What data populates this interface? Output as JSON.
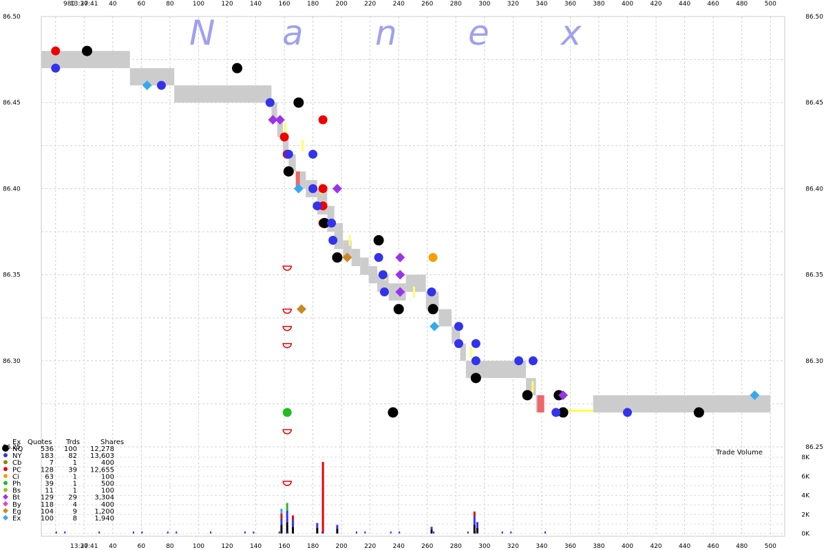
{
  "header": {
    "time_top": "13:37:41",
    "time_bottom": "13:37:41",
    "offset_label": "980"
  },
  "watermark": [
    "N",
    "a",
    "n",
    "e",
    "x"
  ],
  "price_labels": [
    "86.50",
    "86.45",
    "86.40",
    "86.35",
    "86.30",
    "86.25"
  ],
  "x_tick_labels": [
    "20",
    "40",
    "60",
    "80",
    "100",
    "120",
    "140",
    "160",
    "180",
    "200",
    "220",
    "240",
    "260",
    "280",
    "300",
    "320",
    "340",
    "360",
    "380",
    "400",
    "420",
    "440",
    "460",
    "480",
    "500"
  ],
  "volume": {
    "label": "Trade Volume",
    "tick_labels": [
      "8K",
      "6K",
      "4K",
      "2K",
      "0K"
    ]
  },
  "legend": {
    "headers": [
      "Ex",
      "Quotes",
      "Trds",
      "Shares"
    ],
    "rows": [
      {
        "ex": "NQ",
        "quotes": "536",
        "trds": "100",
        "shares": "12,278",
        "color": "#000000",
        "shape": "circle-big"
      },
      {
        "ex": "NY",
        "quotes": "183",
        "trds": "82",
        "shares": "13,603",
        "color": "#3333ee",
        "shape": "circle"
      },
      {
        "ex": "Cb",
        "quotes": "7",
        "trds": "1",
        "shares": "400",
        "color": "#888800",
        "shape": "circle"
      },
      {
        "ex": "PC",
        "quotes": "128",
        "trds": "39",
        "shares": "12,655",
        "color": "#ee0000",
        "shape": "circle"
      },
      {
        "ex": "Ci",
        "quotes": "63",
        "trds": "1",
        "shares": "100",
        "color": "#f5a000",
        "shape": "circle"
      },
      {
        "ex": "Ph",
        "quotes": "39",
        "trds": "1",
        "shares": "500",
        "color": "#22bb22",
        "shape": "circle"
      },
      {
        "ex": "Bs",
        "quotes": "11",
        "trds": "1",
        "shares": "100",
        "color": "#88cc22",
        "shape": "circle"
      },
      {
        "ex": "Bt",
        "quotes": "129",
        "trds": "29",
        "shares": "3,304",
        "color": "#9933ee",
        "shape": "diamond"
      },
      {
        "ex": "By",
        "quotes": "118",
        "trds": "4",
        "shares": "400",
        "color": "#dd44dd",
        "shape": "diamond"
      },
      {
        "ex": "Eg",
        "quotes": "104",
        "trds": "9",
        "shares": "1,200",
        "color": "#cc8822",
        "shape": "diamond"
      },
      {
        "ex": "Ex",
        "quotes": "100",
        "trds": "8",
        "shares": "1,940",
        "color": "#33aaee",
        "shape": "diamond"
      }
    ]
  },
  "chart_data": {
    "type": "scatter",
    "x_range": [
      -10,
      510
    ],
    "ylim": [
      86.25,
      86.5
    ],
    "volume_ylim": [
      0,
      8000
    ],
    "grid": true,
    "nbbo_boxes": [
      [
        -10,
        52,
        86.47,
        86.48
      ],
      [
        52,
        83,
        86.46,
        86.47
      ],
      [
        83,
        151,
        86.45,
        86.46
      ],
      [
        151,
        155,
        86.44,
        86.45
      ],
      [
        155,
        159,
        86.43,
        86.44
      ],
      [
        159,
        163,
        86.42,
        86.43
      ],
      [
        163,
        168,
        86.41,
        86.42
      ],
      [
        168,
        175,
        86.4,
        86.41
      ],
      [
        175,
        183,
        86.395,
        86.405
      ],
      [
        183,
        190,
        86.385,
        86.4
      ],
      [
        190,
        195,
        86.375,
        86.39
      ],
      [
        195,
        201,
        86.365,
        86.38
      ],
      [
        201,
        207,
        86.36,
        86.37
      ],
      [
        207,
        213,
        86.355,
        86.365
      ],
      [
        213,
        219,
        86.35,
        86.36
      ],
      [
        219,
        225,
        86.345,
        86.355
      ],
      [
        225,
        233,
        86.34,
        86.35
      ],
      [
        233,
        245,
        86.335,
        86.345
      ],
      [
        245,
        259,
        86.34,
        86.35
      ],
      [
        259,
        268,
        86.33,
        86.34
      ],
      [
        268,
        277,
        86.32,
        86.33
      ],
      [
        277,
        283,
        86.31,
        86.32
      ],
      [
        283,
        287,
        86.3,
        86.31
      ],
      [
        287,
        295,
        86.29,
        86.3
      ],
      [
        295,
        329,
        86.29,
        86.3
      ],
      [
        329,
        336,
        86.28,
        86.29
      ],
      [
        336,
        340,
        86.27,
        86.28
      ],
      [
        376,
        500,
        86.27,
        86.28
      ]
    ],
    "quote_marks": [
      {
        "series": "PC",
        "points": [
          [
            0,
            86.48
          ],
          [
            160,
            86.43
          ],
          [
            162,
            86.42
          ],
          [
            162,
            86.355
          ],
          [
            162,
            86.33
          ],
          [
            162,
            86.32
          ],
          [
            162,
            86.31
          ],
          [
            162,
            86.26
          ],
          [
            162,
            86.23
          ],
          [
            187,
            86.44
          ],
          [
            187,
            86.4
          ],
          [
            187,
            86.39
          ],
          [
            187,
            86.38
          ]
        ]
      },
      {
        "series": "NQ",
        "points": [
          [
            22,
            86.48
          ],
          [
            127,
            86.47
          ],
          [
            170,
            86.45
          ],
          [
            163,
            86.41
          ],
          [
            188,
            86.38
          ],
          [
            197,
            86.36
          ],
          [
            240,
            86.33
          ],
          [
            264,
            86.33
          ],
          [
            294,
            86.29
          ],
          [
            330,
            86.28
          ],
          [
            226,
            86.37
          ],
          [
            236,
            86.27
          ],
          [
            352,
            86.28
          ],
          [
            355,
            86.27
          ],
          [
            450,
            86.27
          ]
        ]
      },
      {
        "series": "NY",
        "points": [
          [
            0,
            86.47
          ],
          [
            74,
            86.46
          ],
          [
            150,
            86.45
          ],
          [
            163,
            86.42
          ],
          [
            180,
            86.42
          ],
          [
            180,
            86.4
          ],
          [
            183,
            86.39
          ],
          [
            193,
            86.38
          ],
          [
            194,
            86.37
          ],
          [
            226,
            86.36
          ],
          [
            229,
            86.35
          ],
          [
            230,
            86.34
          ],
          [
            263,
            86.34
          ],
          [
            282,
            86.32
          ],
          [
            282,
            86.31
          ],
          [
            294,
            86.31
          ],
          [
            294,
            86.3
          ],
          [
            324,
            86.3
          ],
          [
            334,
            86.3
          ],
          [
            350,
            86.27
          ],
          [
            400,
            86.27
          ]
        ]
      },
      {
        "series": "Bt",
        "points": [
          [
            152,
            86.44
          ],
          [
            157,
            86.44
          ],
          [
            197,
            86.4
          ],
          [
            241,
            86.36
          ],
          [
            241,
            86.35
          ],
          [
            241,
            86.34
          ],
          [
            355,
            86.28
          ]
        ]
      },
      {
        "series": "Ex",
        "points": [
          [
            64,
            86.46
          ],
          [
            170,
            86.4
          ],
          [
            265,
            86.32
          ],
          [
            489,
            86.28
          ]
        ]
      },
      {
        "series": "Eg",
        "points": [
          [
            204,
            86.36
          ],
          [
            172,
            86.33
          ]
        ]
      },
      {
        "series": "Ci",
        "points": [
          [
            264,
            86.36
          ]
        ]
      },
      {
        "series": "Ph",
        "points": [
          [
            162,
            86.27
          ]
        ]
      }
    ],
    "volume_bars": [
      {
        "x": 158,
        "values": [
          900,
          1600,
          2100,
          2600
        ],
        "colors": [
          "#000000",
          "#3333ee",
          "#ee0000",
          "#33aaee"
        ]
      },
      {
        "x": 162,
        "values": [
          1200,
          2400,
          3200
        ],
        "colors": [
          "#000000",
          "#3333ee",
          "#22bb22"
        ]
      },
      {
        "x": 166,
        "values": [
          700,
          1400,
          1900
        ],
        "colors": [
          "#000000",
          "#3333ee",
          "#ee0000"
        ]
      },
      {
        "x": 187,
        "values": [
          7500
        ],
        "colors": [
          "#ee0000"
        ]
      },
      {
        "x": 183,
        "values": [
          600,
          1100
        ],
        "colors": [
          "#000000",
          "#3333ee"
        ]
      },
      {
        "x": 197,
        "values": [
          500,
          900
        ],
        "colors": [
          "#000000",
          "#3333ee"
        ]
      },
      {
        "x": 263,
        "values": [
          400,
          700
        ],
        "colors": [
          "#000000",
          "#3333ee"
        ]
      },
      {
        "x": 293,
        "values": [
          900,
          1800,
          2300
        ],
        "colors": [
          "#000000",
          "#3333ee",
          "#ee0000"
        ]
      },
      {
        "x": 295,
        "values": [
          600,
          1200
        ],
        "colors": [
          "#000000",
          "#3333ee"
        ]
      }
    ]
  }
}
